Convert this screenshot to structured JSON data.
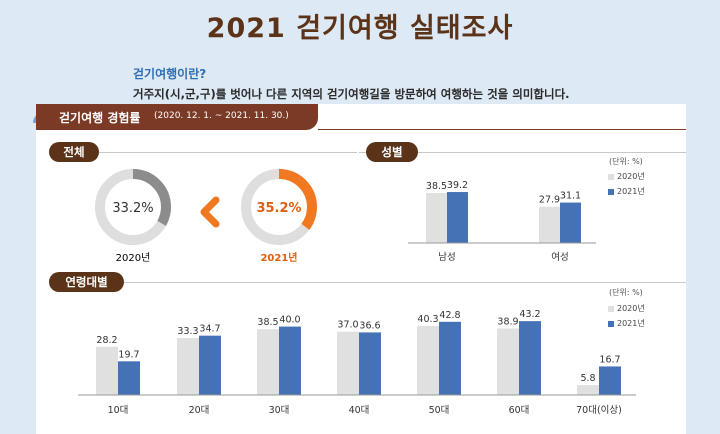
{
  "title": "2021 걷기여행 실태조사",
  "definition": {
    "question": "걷기여행이란?",
    "answer": "거주지(시,군,구)를 벗어나 다른 지역의 걷기여행길을 방문하여 여행하는 것을 의미합니다."
  },
  "section": {
    "title": "걷기여행 경험률",
    "period": "(2020. 12. 1. ~ 2021. 11. 30.)"
  },
  "labels": {
    "overall": "전체",
    "gender": "성별",
    "age": "연령대별",
    "unit": "(단위: %)"
  },
  "colors": {
    "y2020": "#e0e0e0",
    "y2021": "#4472b5",
    "donut_prev": "#8c8c8c",
    "donut_curr": "#f07820",
    "brown": "#5b3318"
  },
  "chart_data": [
    {
      "type": "pie",
      "title": "전체",
      "series": [
        {
          "name": "2020년",
          "value": 33.2,
          "label": "33.2%"
        },
        {
          "name": "2021년",
          "value": 35.2,
          "label": "35.2%"
        }
      ]
    },
    {
      "type": "bar",
      "title": "성별",
      "categories": [
        "남성",
        "여성"
      ],
      "series": [
        {
          "name": "2020년",
          "values": [
            38.5,
            27.9
          ],
          "labels": [
            "38.5",
            "27.9"
          ]
        },
        {
          "name": "2021년",
          "values": [
            39.2,
            31.1
          ],
          "labels": [
            "39.2",
            "31.1"
          ]
        }
      ],
      "ylim": [
        0,
        45
      ]
    },
    {
      "type": "bar",
      "title": "연령대별",
      "categories": [
        "10대",
        "20대",
        "30대",
        "40대",
        "50대",
        "60대",
        "70대(이상)"
      ],
      "series": [
        {
          "name": "2020년",
          "values": [
            28.2,
            33.3,
            38.5,
            37.0,
            40.3,
            38.9,
            5.8
          ],
          "labels": [
            "28.2",
            "33.3",
            "38.5",
            "37.0",
            "40.3",
            "38.9",
            "5.8"
          ]
        },
        {
          "name": "2021년",
          "values": [
            19.7,
            34.7,
            40.0,
            36.6,
            42.8,
            43.2,
            16.7
          ],
          "labels": [
            "19.7",
            "34.7",
            "40.0",
            "36.6",
            "42.8",
            "43.2",
            "16.7"
          ]
        }
      ],
      "ylim": [
        0,
        46
      ]
    }
  ]
}
